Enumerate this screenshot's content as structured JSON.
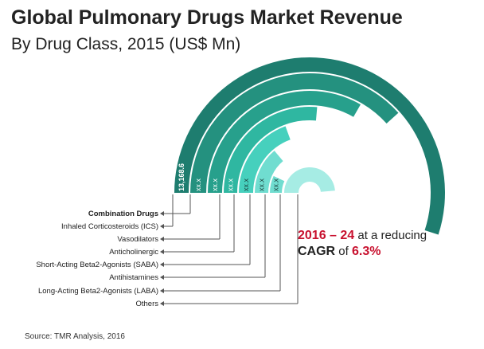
{
  "header": {
    "title": "Global Pulmonary Drugs Market Revenue",
    "subtitle": "By Drug Class, 2015 (US$ Mn)"
  },
  "source": "Source: TMR Analysis, 2016",
  "colors": {
    "ring_1": "#1e7d6f",
    "ring_2": "#24917f",
    "ring_3": "#27a08c",
    "ring_4": "#2fb7a1",
    "ring_5": "#46d0bd",
    "ring_6": "#70ddd0",
    "ring_7": "#a6ece4",
    "forecast_accent": "#c8102e",
    "leader_line": "#555555"
  },
  "chart_data": {
    "type": "radial-bar",
    "title": "Global Pulmonary Drugs Market Revenue",
    "subtitle": "By Drug Class, 2015 (US$ Mn)",
    "categories": [
      "Combination Drugs",
      "Inhaled Corticosteroids (ICS)",
      "Vasodilators",
      "Anticholinergic",
      "Short-Acting Beta2-Agonists (SABA)",
      "Antihistamines",
      "Long-Acting Beta2-Agonists (LABA)",
      "Others"
    ],
    "value_labels": [
      "13,168.6",
      "xx.x",
      "xx.x",
      "xx.x",
      "xx.x",
      "xx.x",
      "xx.x"
    ],
    "callout": {
      "period": "2016 – 24",
      "text_1": " at a reducing",
      "text_2": "CAGR",
      "text_3": " of ",
      "rate": "6.3%"
    }
  }
}
